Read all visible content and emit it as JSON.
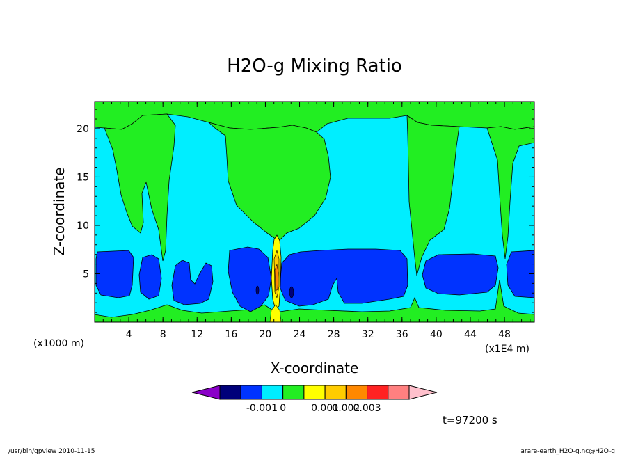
{
  "chart_data": {
    "type": "contour",
    "title": "H2O-g Mixing Ratio",
    "xlabel": "X-coordinate",
    "ylabel": "Z-coordinate",
    "x_unit_left": "(x1000 m)",
    "x_unit_right": "(x1E4 m)",
    "xlim": [
      0,
      51.5
    ],
    "ylim": [
      0,
      22.8
    ],
    "x_ticks": [
      4,
      8,
      12,
      16,
      20,
      24,
      28,
      32,
      36,
      40,
      44,
      48
    ],
    "y_ticks": [
      5,
      10,
      15,
      20
    ],
    "colorbar": {
      "colors": [
        "#8a00c8",
        "#00007a",
        "#0033ff",
        "#00eeff",
        "#22ee22",
        "#ffff00",
        "#ffcc00",
        "#ff8800",
        "#ff2222",
        "#ff8080",
        "#ffc0cc"
      ],
      "labels": [
        "-0.001",
        "0",
        "0.001",
        "0.002",
        "0.003"
      ],
      "label_values": [
        -0.001,
        0,
        0.001,
        0.002,
        0.003
      ]
    },
    "regions": [
      {
        "level": "cyan",
        "desc": "background 0 to 0.0005"
      },
      {
        "level": "green",
        "desc": "upper layer and columns 0.0005 to 0.001"
      },
      {
        "level": "blue",
        "desc": "lower moist band -0.001 to 0, z 1 to 7.5"
      },
      {
        "level": "yellow-red",
        "desc": "updraft core near x=21"
      }
    ],
    "time_label": "t=97200 s"
  },
  "footer": {
    "left": "/usr/bin/gpview   2010-11-15",
    "right": "arare-earth_H2O-g.nc@H2O-g"
  }
}
